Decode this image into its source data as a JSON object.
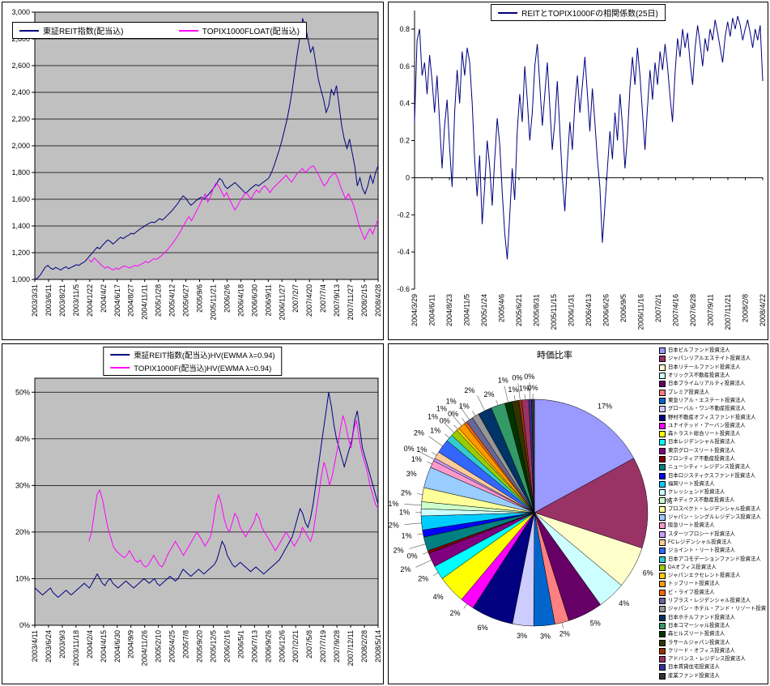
{
  "page": {
    "background": "#FFFFFF"
  },
  "chart_data": [
    {
      "type": "line",
      "name": "price-index-chart",
      "ylim": [
        1000,
        3000
      ],
      "grid": true,
      "plot_border": true,
      "plot_bg": "#C0C0C0",
      "yticks": [
        {
          "v": 3000,
          "t": "3,000"
        },
        {
          "v": 2800,
          "t": "2,800"
        },
        {
          "v": 2600,
          "t": "2,600"
        },
        {
          "v": 2400,
          "t": "2,400"
        },
        {
          "v": 2200,
          "t": "2,200"
        },
        {
          "v": 2000,
          "t": "2,000"
        },
        {
          "v": 1800,
          "t": "1,800"
        },
        {
          "v": 1600,
          "t": "1,600"
        },
        {
          "v": 1400,
          "t": "1,400"
        },
        {
          "v": 1200,
          "t": "1,200"
        },
        {
          "v": 1000,
          "t": "1,000"
        }
      ],
      "xticks": [
        "2003/3/31",
        "2003/6/11",
        "2003/8/21",
        "2003/11/5",
        "2004/1/22",
        "2004/4/2",
        "2004/6/17",
        "2004/8/27",
        "2004/11/11",
        "2005/1/28",
        "2005/4/12",
        "2005/6/27",
        "2005/9/6",
        "2005/11/21",
        "2006/2/6",
        "2006/4/18",
        "2006/6/30",
        "2006/9/11",
        "2006/11/27",
        "2007/2/7",
        "2007/4/20",
        "2007/7/4",
        "2007/9/13",
        "2007/11/27",
        "2008/2/15",
        "2008/4/28"
      ],
      "series": [
        {
          "name": "東証REIT指数(配当込)",
          "color": "#000080",
          "values": [
            1000,
            1010,
            1030,
            1060,
            1090,
            1105,
            1085,
            1075,
            1090,
            1080,
            1070,
            1085,
            1095,
            1080,
            1090,
            1100,
            1110,
            1105,
            1120,
            1130,
            1150,
            1175,
            1195,
            1220,
            1240,
            1230,
            1255,
            1275,
            1295,
            1285,
            1265,
            1280,
            1300,
            1315,
            1305,
            1320,
            1330,
            1345,
            1340,
            1355,
            1370,
            1385,
            1395,
            1410,
            1420,
            1430,
            1425,
            1440,
            1455,
            1445,
            1460,
            1480,
            1500,
            1520,
            1545,
            1570,
            1600,
            1625,
            1610,
            1580,
            1555,
            1570,
            1590,
            1605,
            1615,
            1600,
            1620,
            1640,
            1665,
            1690,
            1720,
            1755,
            1740,
            1700,
            1680,
            1695,
            1710,
            1725,
            1705,
            1685,
            1665,
            1645,
            1660,
            1680,
            1695,
            1710,
            1700,
            1715,
            1730,
            1745,
            1760,
            1800,
            1850,
            1910,
            1970,
            2040,
            2120,
            2200,
            2300,
            2420,
            2560,
            2700,
            2820,
            2950,
            2900,
            2800,
            2700,
            2740,
            2620,
            2500,
            2420,
            2350,
            2250,
            2300,
            2420,
            2380,
            2450,
            2300,
            2150,
            2050,
            1980,
            2050,
            1950,
            1850,
            1700,
            1760,
            1680,
            1640,
            1700,
            1780,
            1720,
            1800,
            1850
          ]
        },
        {
          "name": "TOPIX1000FLOAT(配当込)",
          "color": "#FF00FF",
          "values": [
            null,
            null,
            null,
            null,
            null,
            null,
            null,
            null,
            null,
            null,
            null,
            null,
            null,
            null,
            null,
            null,
            null,
            null,
            null,
            null,
            1150,
            1130,
            1160,
            1140,
            1120,
            1100,
            1085,
            1095,
            1080,
            1070,
            1085,
            1075,
            1090,
            1100,
            1095,
            1085,
            1095,
            1105,
            1100,
            1110,
            1120,
            1135,
            1125,
            1140,
            1155,
            1150,
            1165,
            1180,
            1200,
            1220,
            1245,
            1270,
            1300,
            1330,
            1365,
            1400,
            1440,
            1470,
            1440,
            1480,
            1520,
            1560,
            1600,
            1640,
            1580,
            1620,
            1680,
            1720,
            1700,
            1660,
            1620,
            1650,
            1600,
            1560,
            1520,
            1550,
            1590,
            1620,
            1650,
            1630,
            1600,
            1640,
            1670,
            1650,
            1680,
            1700,
            1680,
            1650,
            1680,
            1700,
            1720,
            1740,
            1760,
            1780,
            1750,
            1730,
            1760,
            1790,
            1810,
            1830,
            1800,
            1820,
            1840,
            1850,
            1820,
            1780,
            1740,
            1700,
            1720,
            1760,
            1780,
            1800,
            1760,
            1700,
            1650,
            1600,
            1640,
            1600,
            1550,
            1480,
            1400,
            1350,
            1300,
            1340,
            1380,
            1340,
            1400,
            1450
          ]
        }
      ]
    },
    {
      "type": "line",
      "name": "correlation-chart",
      "title": "REITとTOPIX1000Fの相関係数(25日)",
      "ylim": [
        -0.6,
        0.9
      ],
      "grid": false,
      "plot_border": false,
      "zero_axis": true,
      "plot_bg": "#FFFFFF",
      "yticks": [
        {
          "v": 0.8,
          "t": "0.8"
        },
        {
          "v": 0.6,
          "t": "0.6"
        },
        {
          "v": 0.4,
          "t": "0.4"
        },
        {
          "v": 0.2,
          "t": "0.2"
        },
        {
          "v": 0,
          "t": "0"
        },
        {
          "v": -0.2,
          "t": "-0.2"
        },
        {
          "v": -0.4,
          "t": "-0.4"
        },
        {
          "v": -0.6,
          "t": "-0.6"
        }
      ],
      "xticks": [
        "2004/3/29",
        "2004/6/11",
        "2004/8/23",
        "2004/11/5",
        "2005/1/24",
        "2005/4/6",
        "2005/6/21",
        "2005/8/31",
        "2005/11/15",
        "2006/1/31",
        "2006/4/13",
        "2006/6/26",
        "2006/9/5",
        "2006/11/16",
        "2007/2/1",
        "2007/4/16",
        "2007/6/28",
        "2007/9/11",
        "2007/11/21",
        "2008/2/8",
        "2008/4/22"
      ],
      "series": [
        {
          "name": "REITとTOPIX1000Fの相関係数(25日)",
          "color": "#000080",
          "values": [
            0.3,
            0.74,
            0.8,
            0.55,
            0.62,
            0.45,
            0.66,
            0.52,
            0.35,
            0.55,
            0.3,
            0.05,
            0.28,
            0.42,
            0.16,
            -0.05,
            0.35,
            0.58,
            0.4,
            0.68,
            0.55,
            0.7,
            0.62,
            0.4,
            0.1,
            -0.1,
            0.12,
            -0.25,
            -0.05,
            0.2,
            0.06,
            -0.15,
            0.1,
            0.32,
            0.18,
            -0.08,
            -0.3,
            -0.44,
            -0.2,
            0.05,
            -0.12,
            0.25,
            0.45,
            0.3,
            0.6,
            0.42,
            0.2,
            0.35,
            0.6,
            0.72,
            0.5,
            0.28,
            0.45,
            0.62,
            0.38,
            0.15,
            0.3,
            0.52,
            0.26,
            0.0,
            -0.18,
            0.08,
            0.3,
            0.15,
            0.4,
            0.55,
            0.35,
            0.5,
            0.65,
            0.45,
            0.25,
            0.48,
            0.3,
            0.1,
            -0.05,
            -0.35,
            -0.15,
            0.05,
            0.25,
            0.1,
            0.35,
            0.2,
            0.45,
            0.28,
            0.05,
            0.22,
            0.48,
            0.65,
            0.5,
            0.7,
            0.55,
            0.35,
            0.15,
            0.38,
            0.58,
            0.42,
            0.62,
            0.5,
            0.68,
            0.58,
            0.72,
            0.6,
            0.44,
            0.3,
            0.56,
            0.75,
            0.65,
            0.8,
            0.7,
            0.78,
            0.62,
            0.5,
            0.7,
            0.82,
            0.72,
            0.6,
            0.75,
            0.68,
            0.8,
            0.74,
            0.85,
            0.78,
            0.7,
            0.62,
            0.76,
            0.84,
            0.76,
            0.86,
            0.8,
            0.87,
            0.82,
            0.74,
            0.8,
            0.85,
            0.78,
            0.7,
            0.8,
            0.74,
            0.82,
            0.52
          ]
        }
      ]
    },
    {
      "type": "line",
      "name": "volatility-chart",
      "ylim": [
        0,
        53
      ],
      "grid": true,
      "plot_border": true,
      "plot_bg": "#C0C0C0",
      "yticks": [
        {
          "v": 50,
          "t": "50%"
        },
        {
          "v": 40,
          "t": "40%"
        },
        {
          "v": 30,
          "t": "30%"
        },
        {
          "v": 20,
          "t": "20%"
        },
        {
          "v": 10,
          "t": "10%"
        },
        {
          "v": 0,
          "t": "0%"
        }
      ],
      "xticks": [
        "2003/4/11",
        "2003/6/24",
        "2003/9/3",
        "2003/11/18",
        "2004/2/4",
        "2004/4/15",
        "2004/6/30",
        "2004/9/9",
        "2004/11/26",
        "2005/2/10",
        "2005/4/25",
        "2005/7/8",
        "2005/9/20",
        "2005/12/5",
        "2006/2/16",
        "2006/5/1",
        "2006/7/13",
        "2006/9/26",
        "2006/12/6",
        "2007/2/21",
        "2007/5/8",
        "2007/7/19",
        "2007/9/28",
        "2007/12/11",
        "2008/2/28",
        "2008/5/14"
      ],
      "series": [
        {
          "name": "東証REIT指数(配当込)HV(EWMA λ=0.94)",
          "color": "#000080",
          "values": [
            8,
            7.5,
            7,
            6.5,
            7,
            7.5,
            8,
            7,
            6.5,
            6,
            6.5,
            7,
            7.5,
            7,
            6.5,
            7,
            7.5,
            8,
            8.5,
            9,
            8.5,
            8,
            9,
            10,
            11,
            10,
            9,
            8.5,
            9.5,
            10,
            9,
            8.5,
            8,
            8.5,
            9,
            9.5,
            9,
            8.5,
            8,
            8.5,
            9,
            9.5,
            10,
            9.5,
            9,
            9.5,
            10,
            9,
            8.5,
            9,
            9.5,
            10,
            10.5,
            10,
            9.5,
            10,
            11,
            12,
            11.5,
            11,
            10.5,
            11,
            11.5,
            12,
            11.5,
            11,
            11.5,
            12,
            12.5,
            13,
            14,
            16,
            18,
            17,
            15,
            14,
            13,
            12.5,
            13,
            13.5,
            13,
            12.5,
            12,
            11.5,
            12,
            12.5,
            12,
            11.5,
            11,
            11.5,
            12,
            12.5,
            13,
            13.5,
            14,
            15,
            16,
            17,
            18,
            19,
            21,
            23,
            25,
            24,
            22,
            21,
            23,
            26,
            30,
            34,
            38,
            42,
            46,
            50,
            47,
            43,
            40,
            38,
            36,
            34,
            36,
            38,
            40,
            44,
            46,
            42,
            38,
            36,
            34,
            32,
            30,
            28,
            26
          ]
        },
        {
          "name": "TOPIX1000F(配当込)HV(EWMA λ=0.94)",
          "color": "#FF00FF",
          "values": [
            null,
            null,
            null,
            null,
            null,
            null,
            null,
            null,
            null,
            null,
            null,
            null,
            null,
            null,
            null,
            null,
            null,
            null,
            null,
            null,
            18,
            20,
            24,
            28,
            29,
            27,
            24,
            21,
            19,
            17,
            16,
            15.5,
            15,
            14.5,
            15,
            16,
            15,
            14,
            13.5,
            14,
            13,
            12.5,
            13,
            14,
            15,
            14,
            13,
            12.5,
            13.5,
            15,
            16,
            17,
            18,
            17,
            16,
            15,
            16,
            17,
            18,
            19,
            20,
            19,
            18,
            17,
            18,
            19,
            22,
            26,
            28,
            26,
            23,
            21,
            20,
            22,
            24,
            23,
            21,
            20,
            19,
            20,
            21,
            22,
            24,
            23,
            21,
            20,
            19,
            18,
            17,
            16,
            17,
            18,
            19,
            20,
            19,
            18,
            17,
            18,
            19,
            21,
            20,
            19,
            18,
            20,
            24,
            28,
            32,
            35,
            33,
            30,
            32,
            35,
            38,
            42,
            45,
            43,
            40,
            38,
            42,
            44,
            40,
            37,
            35,
            33,
            30,
            28,
            26,
            25
          ]
        }
      ]
    },
    {
      "type": "pie",
      "name": "market-cap-pie",
      "title": "時価比率",
      "values": [
        17,
        13,
        6,
        4,
        5,
        2,
        3,
        3,
        6,
        2,
        4,
        2,
        2,
        0.4,
        2,
        1,
        2,
        1,
        1,
        2,
        3,
        1,
        0.4,
        1,
        2,
        1,
        1,
        0.4,
        1,
        0.4,
        1,
        1,
        2,
        2,
        1,
        1,
        0.4,
        1,
        0.4,
        0.4
      ],
      "labels": [
        "17%",
        "13%",
        "6%",
        "4%",
        "5%",
        "2%",
        "3%",
        "3%",
        "6%",
        "2%",
        "4%",
        "2%",
        "2%",
        "0%",
        "2%",
        "1%",
        "2%",
        "1%",
        "1%",
        "2%",
        "3%",
        "1%",
        "0%",
        "1%",
        "2%",
        "1%",
        "1%",
        "0%",
        "1%",
        "0%",
        "1%",
        "1%",
        "2%",
        "2%",
        "1%",
        "1%",
        "0%",
        "1%",
        "0%",
        "0%"
      ],
      "colors": [
        "#9999FF",
        "#993366",
        "#FFFFCC",
        "#CCFFFF",
        "#660066",
        "#FF8080",
        "#0066CC",
        "#CCCCFF",
        "#000080",
        "#FF00FF",
        "#FFFF00",
        "#00FFFF",
        "#800080",
        "#800000",
        "#008080",
        "#0000FF",
        "#00CCFF",
        "#CCFFFF",
        "#CCFFCC",
        "#FFFF99",
        "#99CCFF",
        "#FF99CC",
        "#CC99FF",
        "#FFCC99",
        "#3366FF",
        "#33CCCC",
        "#99CC00",
        "#FFCC00",
        "#FF9900",
        "#FF6600",
        "#666699",
        "#969696",
        "#003366",
        "#339966",
        "#003300",
        "#333300",
        "#993300",
        "#993366",
        "#333399",
        "#333333"
      ],
      "legend": [
        "日本ビルファンド投資法人",
        "ジャパンリアルエステイト投資法人",
        "日本リテールファンド投資法人",
        "オリックス不動産投資法人",
        "日本プライムリアルティ投資法人",
        "プレミア投資法人",
        "東急リアル・エステート投資法人",
        "グローバル・ワン不動産投資法人",
        "野村不動産オフィスファンド投資法人",
        "ユナイテッド・アーバン投資法人",
        "森トラスト総合リート投資法人",
        "日本レジデンシャル投資法人",
        "東京グロースリート投資法人",
        "フロンティア不動産投資法人",
        "ニューシティ・レジデンス投資法人",
        "日本ロジスティクスファンド投資法人",
        "福岡リート投資法人",
        "クレッシェンド投資法人",
        "ケネディクス不動産投資法人",
        "プロスペクト・レジデンシャル投資法人",
        "ジャパン・シングルレジデンス投資法人",
        "阪急リート投資法人",
        "スターツプロシード投資法人",
        "FCレジデンシャル投資法人",
        "ジョイント・リート投資法人",
        "日本アコモデーションファンド投資法人",
        "DAオフィス投資法人",
        "ジャパンエクセレント投資法人",
        "トップリート投資法人",
        "ビ・ライフ投資法人",
        "リプラス・レジデンシャル投資法人",
        "ジャパン・ホテル・アンド・リゾート投資法人",
        "日本ホテルファンド投資法人",
        "日本コマーシャル投資法人",
        "森ヒルズリート投資法人",
        "ラサールジャパン投資法人",
        "クリード・オフィス投資法人",
        "アドバンス・レジデンス投資法人",
        "日本賃貸住宅投資法人",
        "産業ファンド投資法人"
      ]
    }
  ]
}
